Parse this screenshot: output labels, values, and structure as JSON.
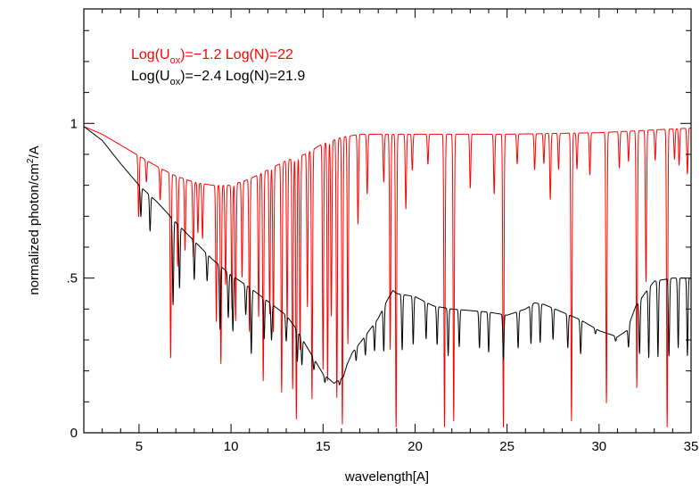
{
  "chart_data": {
    "type": "line",
    "title": "",
    "xlabel": "wavelength[A]",
    "ylabel_parts": {
      "main": "normalized photon/cm",
      "sup": "2",
      "tail": "/A"
    },
    "xlim": [
      2,
      35
    ],
    "ylim": [
      0,
      1.37
    ],
    "xticks": [
      5,
      10,
      15,
      20,
      25,
      30,
      35
    ],
    "xtick_labels": [
      "5",
      "10",
      "15",
      "20",
      "25",
      "30",
      "35"
    ],
    "yticks": [
      0,
      0.5,
      1
    ],
    "ytick_labels": [
      "0",
      ".5",
      "1"
    ],
    "grid": false,
    "legend_position": "top-left",
    "series": [
      {
        "legend": {
          "pre": "Log(U",
          "sub": "ox",
          "post": ")=−1.2   Log(N)=22"
        },
        "color": "#ff0000",
        "continuum": [
          [
            2,
            0.99
          ],
          [
            3,
            0.965
          ],
          [
            4,
            0.93
          ],
          [
            5,
            0.895
          ],
          [
            6,
            0.86
          ],
          [
            7,
            0.83
          ],
          [
            8,
            0.81
          ],
          [
            9,
            0.8
          ],
          [
            10,
            0.8
          ],
          [
            11,
            0.82
          ],
          [
            12,
            0.85
          ],
          [
            13,
            0.88
          ],
          [
            14,
            0.9
          ],
          [
            15,
            0.935
          ],
          [
            16,
            0.955
          ],
          [
            17,
            0.965
          ],
          [
            20,
            0.965
          ],
          [
            25,
            0.965
          ],
          [
            30,
            0.97
          ],
          [
            35,
            0.985
          ]
        ],
        "absorption_lines": [
          [
            4.98,
            0.22
          ],
          [
            5.4,
            0.08
          ],
          [
            6.15,
            0.12
          ],
          [
            6.72,
            0.71
          ],
          [
            7.1,
            0.35
          ],
          [
            7.5,
            0.28
          ],
          [
            7.95,
            0.3
          ],
          [
            8.2,
            0.2
          ],
          [
            8.45,
            0.22
          ],
          [
            9.2,
            0.55
          ],
          [
            9.45,
            0.72
          ],
          [
            9.7,
            0.4
          ],
          [
            10.05,
            0.5
          ],
          [
            10.25,
            0.55
          ],
          [
            10.6,
            0.38
          ],
          [
            11.0,
            0.6
          ],
          [
            11.5,
            0.55
          ],
          [
            11.75,
            0.8
          ],
          [
            12.1,
            0.55
          ],
          [
            12.3,
            0.62
          ],
          [
            12.75,
            0.85
          ],
          [
            13.05,
            0.6
          ],
          [
            13.35,
            0.84
          ],
          [
            13.55,
            0.95
          ],
          [
            13.75,
            0.7
          ],
          [
            14.15,
            0.55
          ],
          [
            14.4,
            0.88
          ],
          [
            15.0,
            0.78
          ],
          [
            15.25,
            0.82
          ],
          [
            15.45,
            0.6
          ],
          [
            15.75,
            0.88
          ],
          [
            16.05,
            0.97
          ],
          [
            16.35,
            0.7
          ],
          [
            16.9,
            0.3
          ],
          [
            17.4,
            0.2
          ],
          [
            18.3,
            0.16
          ],
          [
            18.65,
            0.72
          ],
          [
            18.97,
            0.98
          ],
          [
            19.5,
            0.25
          ],
          [
            19.85,
            0.12
          ],
          [
            20.7,
            0.1
          ],
          [
            21.6,
            0.98
          ],
          [
            22.1,
            0.96
          ],
          [
            23.0,
            0.18
          ],
          [
            24.3,
            0.2
          ],
          [
            24.8,
            0.98
          ],
          [
            25.55,
            0.1
          ],
          [
            26.5,
            0.12
          ],
          [
            27.0,
            0.1
          ],
          [
            27.35,
            0.22
          ],
          [
            27.8,
            0.12
          ],
          [
            28.5,
            0.96
          ],
          [
            28.8,
            0.12
          ],
          [
            29.5,
            0.14
          ],
          [
            30.4,
            0.9
          ],
          [
            31.1,
            0.12
          ],
          [
            31.6,
            0.1
          ],
          [
            32.05,
            0.85
          ],
          [
            32.55,
            0.5
          ],
          [
            33.05,
            0.1
          ],
          [
            33.7,
            0.98
          ],
          [
            34.1,
            0.1
          ],
          [
            34.35,
            0.12
          ],
          [
            34.8,
            0.15
          ]
        ]
      },
      {
        "legend": {
          "pre": "Log(U",
          "sub": "ox",
          "post": ")=−2.4   Log(N)=21.9"
        },
        "color": "#000000",
        "continuum": [
          [
            2,
            0.99
          ],
          [
            3,
            0.945
          ],
          [
            4,
            0.87
          ],
          [
            5,
            0.8
          ],
          [
            6,
            0.745
          ],
          [
            7,
            0.68
          ],
          [
            8,
            0.62
          ],
          [
            9,
            0.56
          ],
          [
            10,
            0.51
          ],
          [
            11,
            0.47
          ],
          [
            12,
            0.425
          ],
          [
            13,
            0.38
          ],
          [
            13.5,
            0.34
          ],
          [
            14,
            0.29
          ],
          [
            14.5,
            0.24
          ],
          [
            15,
            0.19
          ],
          [
            15.6,
            0.16
          ],
          [
            16.1,
            0.18
          ],
          [
            16.3,
            0.22
          ],
          [
            16.6,
            0.26
          ],
          [
            17,
            0.29
          ],
          [
            17.5,
            0.33
          ],
          [
            18,
            0.37
          ],
          [
            18.5,
            0.43
          ],
          [
            18.8,
            0.46
          ],
          [
            19,
            0.45
          ],
          [
            20,
            0.44
          ],
          [
            21,
            0.41
          ],
          [
            22,
            0.4
          ],
          [
            24,
            0.39
          ],
          [
            25,
            0.38
          ],
          [
            26,
            0.4
          ],
          [
            26.5,
            0.42
          ],
          [
            27,
            0.415
          ],
          [
            28,
            0.39
          ],
          [
            29,
            0.365
          ],
          [
            30,
            0.33
          ],
          [
            31,
            0.31
          ],
          [
            31.5,
            0.33
          ],
          [
            32,
            0.41
          ],
          [
            32.6,
            0.46
          ],
          [
            33,
            0.49
          ],
          [
            34,
            0.5
          ],
          [
            35,
            0.5
          ]
        ],
        "absorption_lines": [
          [
            5.1,
            0.12
          ],
          [
            5.6,
            0.15
          ],
          [
            6.85,
            0.4
          ],
          [
            7.2,
            0.3
          ],
          [
            8.0,
            0.2
          ],
          [
            8.7,
            0.15
          ],
          [
            9.4,
            0.38
          ],
          [
            9.85,
            0.28
          ],
          [
            10.1,
            0.35
          ],
          [
            10.8,
            0.2
          ],
          [
            11.1,
            0.45
          ],
          [
            11.8,
            0.3
          ],
          [
            12.2,
            0.28
          ],
          [
            13.0,
            0.22
          ],
          [
            13.6,
            0.3
          ],
          [
            13.85,
            0.28
          ],
          [
            14.5,
            0.15
          ],
          [
            15.1,
            0.12
          ],
          [
            15.9,
            0.1
          ],
          [
            16.8,
            0.15
          ],
          [
            17.3,
            0.2
          ],
          [
            17.8,
            0.25
          ],
          [
            18.3,
            0.35
          ],
          [
            19.3,
            0.4
          ],
          [
            19.9,
            0.35
          ],
          [
            20.6,
            0.28
          ],
          [
            21.2,
            0.3
          ],
          [
            21.8,
            0.38
          ],
          [
            22.4,
            0.3
          ],
          [
            23.5,
            0.3
          ],
          [
            24.0,
            0.33
          ],
          [
            24.8,
            0.38
          ],
          [
            25.6,
            0.3
          ],
          [
            26.3,
            0.3
          ],
          [
            26.8,
            0.3
          ],
          [
            27.5,
            0.25
          ],
          [
            28.3,
            0.28
          ],
          [
            29.0,
            0.3
          ],
          [
            29.8,
            0.05
          ],
          [
            30.9,
            0.05
          ],
          [
            31.6,
            0.2
          ],
          [
            32.2,
            0.4
          ],
          [
            32.7,
            0.48
          ],
          [
            33.2,
            0.5
          ],
          [
            33.8,
            0.5
          ],
          [
            34.3,
            0.45
          ],
          [
            34.8,
            0.5
          ]
        ]
      }
    ]
  }
}
